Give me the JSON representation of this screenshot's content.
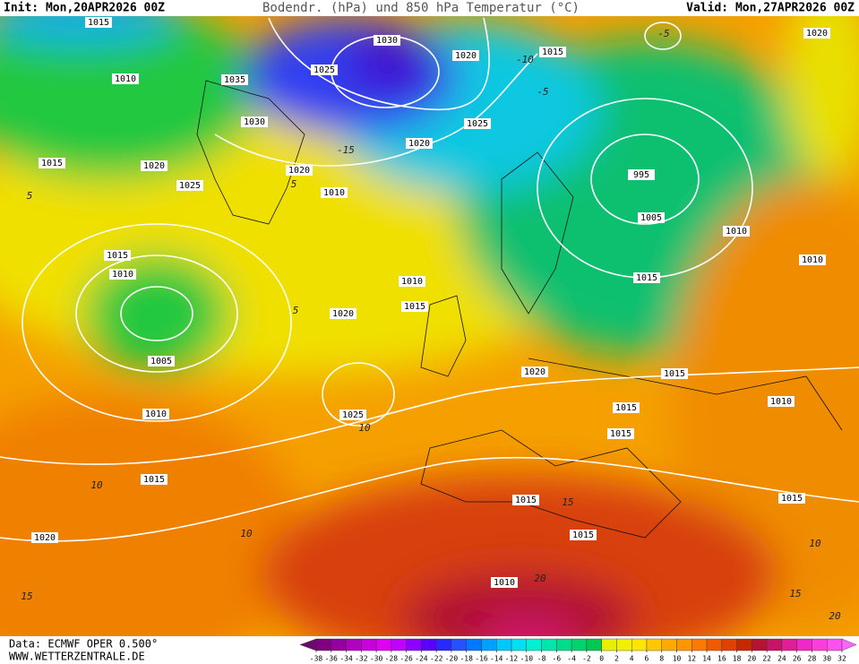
{
  "header": {
    "init": "Init: Mon,20APR2026 00Z",
    "title": "Bodendr. (hPa) und 850 hPa Temperatur (°C)",
    "valid": "Valid: Mon,27APR2026 00Z"
  },
  "footer": {
    "data": "Data: ECMWF OPER 0.500°",
    "site": "WWW.WETTERZENTRALE.DE"
  },
  "legend": {
    "ticks": [
      -38,
      -36,
      -34,
      -32,
      -30,
      -28,
      -26,
      -24,
      -22,
      -20,
      -18,
      -16,
      -14,
      -12,
      -10,
      -8,
      -6,
      -4,
      -2,
      0,
      2,
      4,
      6,
      8,
      10,
      12,
      14,
      16,
      18,
      20,
      22,
      24,
      26,
      28,
      30,
      32
    ],
    "colors": [
      "#6a0a6a",
      "#800080",
      "#9400a0",
      "#b000c0",
      "#c800dc",
      "#e000f0",
      "#c000ff",
      "#8c00ff",
      "#5a00ff",
      "#2828ff",
      "#2850ff",
      "#0078ff",
      "#00a0ff",
      "#00c8ff",
      "#00e0f0",
      "#00f0d0",
      "#00e6aa",
      "#00dc8c",
      "#00d26e",
      "#00c850",
      "#e6f000",
      "#f0f000",
      "#ffe600",
      "#ffc800",
      "#ffaa00",
      "#ff9600",
      "#ff7800",
      "#f05a00",
      "#e04000",
      "#c82800",
      "#b41432",
      "#c81464",
      "#e01e96",
      "#f028c8",
      "#ff3cdc",
      "#ff50f0",
      "#ff64ff"
    ]
  },
  "map": {
    "isobar_labels": [
      "1015",
      "1010",
      "1035",
      "1030",
      "1025",
      "1030",
      "1020",
      "1015",
      "1020",
      "1025",
      "1020",
      "1015",
      "1020",
      "1025",
      "1020",
      "1010",
      "995",
      "1005",
      "1010",
      "1010",
      "1015",
      "1010",
      "1010",
      "1015",
      "1020",
      "1015",
      "1005",
      "1020",
      "1015",
      "1025",
      "1010",
      "1010",
      "1015",
      "1015",
      "1015",
      "1015",
      "1015",
      "1020",
      "1015",
      "1010"
    ],
    "isotherm_labels": [
      "-5",
      "-10",
      "-15",
      "-5",
      "5",
      "5",
      "5",
      "10",
      "10",
      "10",
      "15",
      "20",
      "15",
      "10",
      "15",
      "20"
    ]
  }
}
